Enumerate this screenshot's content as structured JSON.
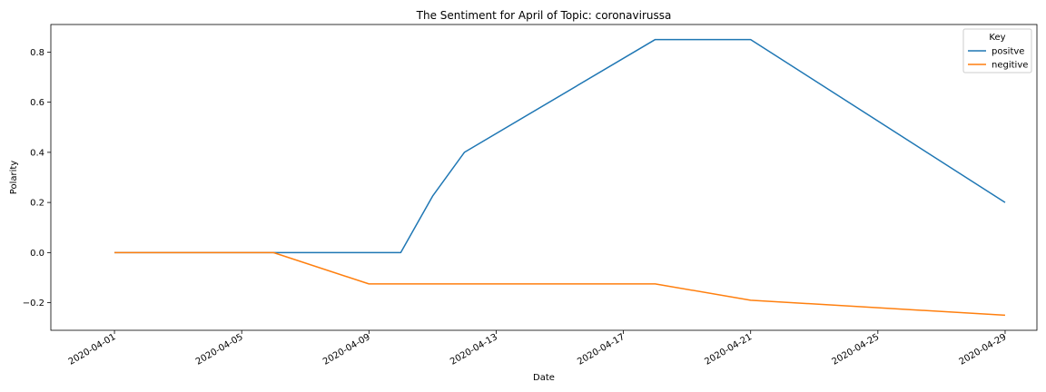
{
  "chart_data": {
    "type": "line",
    "title": "The Sentiment for April of Topic: coronavirussa",
    "xlabel": "Date",
    "ylabel": "Polarity",
    "xlim": [
      "2020-03-30",
      "2020-04-30"
    ],
    "ylim": [
      -0.31,
      0.91
    ],
    "x_ticks": [
      "2020-04-01",
      "2020-04-05",
      "2020-04-09",
      "2020-04-13",
      "2020-04-17",
      "2020-04-21",
      "2020-04-25",
      "2020-04-29"
    ],
    "y_ticks": [
      -0.2,
      0.0,
      0.2,
      0.4,
      0.6,
      0.8
    ],
    "y_tick_labels": [
      "−0.2",
      "0.0",
      "0.2",
      "0.4",
      "0.6",
      "0.8"
    ],
    "grid": false,
    "legend": {
      "title": "Key",
      "placement": "top-right"
    },
    "series": [
      {
        "name": "positve",
        "color": "#1f77b4",
        "points": [
          {
            "x": "2020-04-01",
            "y": 0.0
          },
          {
            "x": "2020-04-06",
            "y": 0.0
          },
          {
            "x": "2020-04-10",
            "y": 0.0
          },
          {
            "x": "2020-04-11",
            "y": 0.225
          },
          {
            "x": "2020-04-12",
            "y": 0.4
          },
          {
            "x": "2020-04-18",
            "y": 0.85
          },
          {
            "x": "2020-04-21",
            "y": 0.85
          },
          {
            "x": "2020-04-29",
            "y": 0.2
          }
        ]
      },
      {
        "name": "negitive",
        "color": "#ff7f0e",
        "points": [
          {
            "x": "2020-04-01",
            "y": 0.0
          },
          {
            "x": "2020-04-06",
            "y": 0.0
          },
          {
            "x": "2020-04-09",
            "y": -0.125
          },
          {
            "x": "2020-04-18",
            "y": -0.125
          },
          {
            "x": "2020-04-21",
            "y": -0.19
          },
          {
            "x": "2020-04-29",
            "y": -0.25
          }
        ]
      }
    ]
  }
}
